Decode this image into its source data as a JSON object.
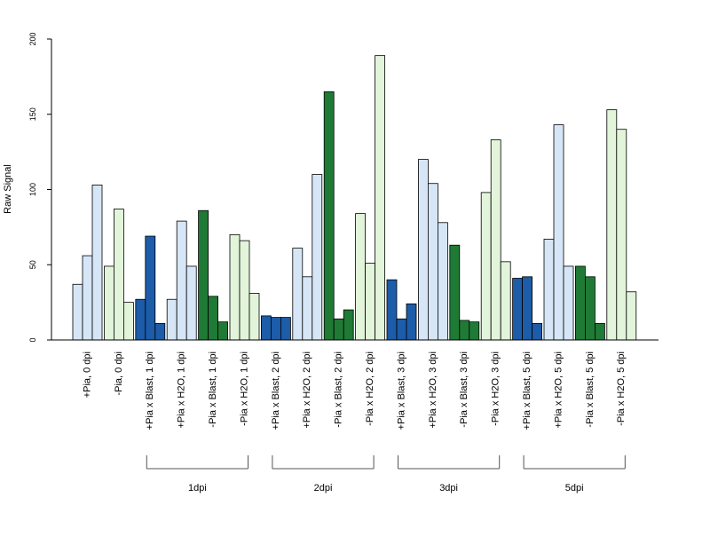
{
  "chart_data": {
    "type": "bar",
    "ylabel": "Raw Signal",
    "xlabel": "",
    "title": "",
    "ylim": [
      0,
      200
    ],
    "yticks": [
      0,
      50,
      100,
      150,
      200
    ],
    "grid": false,
    "legend": "none",
    "categories": [
      {
        "label": "+Pia, 0 dpi",
        "color": "#d6e6f7",
        "values": [
          37,
          56,
          103
        ]
      },
      {
        "label": "-Pia, 0 dpi",
        "color": "#e2f4da",
        "values": [
          49,
          87,
          25
        ]
      },
      {
        "label": "+Pia x Blast, 1 dpi",
        "color": "#1c5ca8",
        "values": [
          27,
          69,
          11
        ]
      },
      {
        "label": "+Pia x H2O, 1 dpi",
        "color": "#d6e6f7",
        "values": [
          27,
          79,
          49
        ]
      },
      {
        "label": "-Pia x Blast, 1 dpi",
        "color": "#1f7a35",
        "values": [
          86,
          29,
          12
        ]
      },
      {
        "label": "-Pia x H2O, 1 dpi",
        "color": "#e2f4da",
        "values": [
          70,
          66,
          31
        ]
      },
      {
        "label": "+Pia x Blast, 2 dpi",
        "color": "#1c5ca8",
        "values": [
          16,
          15,
          15
        ]
      },
      {
        "label": "+Pia x H2O, 2 dpi",
        "color": "#d6e6f7",
        "values": [
          61,
          42,
          110
        ]
      },
      {
        "label": "-Pia x Blast, 2 dpi",
        "color": "#1f7a35",
        "values": [
          165,
          14,
          20
        ]
      },
      {
        "label": "-Pia x H2O, 2 dpi",
        "color": "#e2f4da",
        "values": [
          84,
          51,
          189
        ]
      },
      {
        "label": "+Pia x Blast, 3 dpi",
        "color": "#1c5ca8",
        "values": [
          40,
          14,
          24
        ]
      },
      {
        "label": "+Pia x H2O, 3 dpi",
        "color": "#d6e6f7",
        "values": [
          120,
          104,
          78
        ]
      },
      {
        "label": "-Pia x Blast, 3 dpi",
        "color": "#1f7a35",
        "values": [
          63,
          13,
          12
        ]
      },
      {
        "label": "-Pia x H2O, 3 dpi",
        "color": "#e2f4da",
        "values": [
          98,
          133,
          52
        ]
      },
      {
        "label": "+Pia x Blast, 5 dpi",
        "color": "#1c5ca8",
        "values": [
          41,
          42,
          11
        ]
      },
      {
        "label": "+Pia x H2O, 5 dpi",
        "color": "#d6e6f7",
        "values": [
          67,
          143,
          49
        ]
      },
      {
        "label": "-Pia x Blast, 5 dpi",
        "color": "#1f7a35",
        "values": [
          49,
          42,
          11
        ]
      },
      {
        "label": "-Pia x H2O, 5 dpi",
        "color": "#e2f4da",
        "values": [
          153,
          140,
          32
        ]
      }
    ],
    "groups": [
      {
        "label": "1dpi",
        "first_category": 2,
        "last_category": 5
      },
      {
        "label": "2dpi",
        "first_category": 6,
        "last_category": 9
      },
      {
        "label": "3dpi",
        "first_category": 10,
        "last_category": 13
      },
      {
        "label": "5dpi",
        "first_category": 14,
        "last_category": 17
      }
    ]
  }
}
